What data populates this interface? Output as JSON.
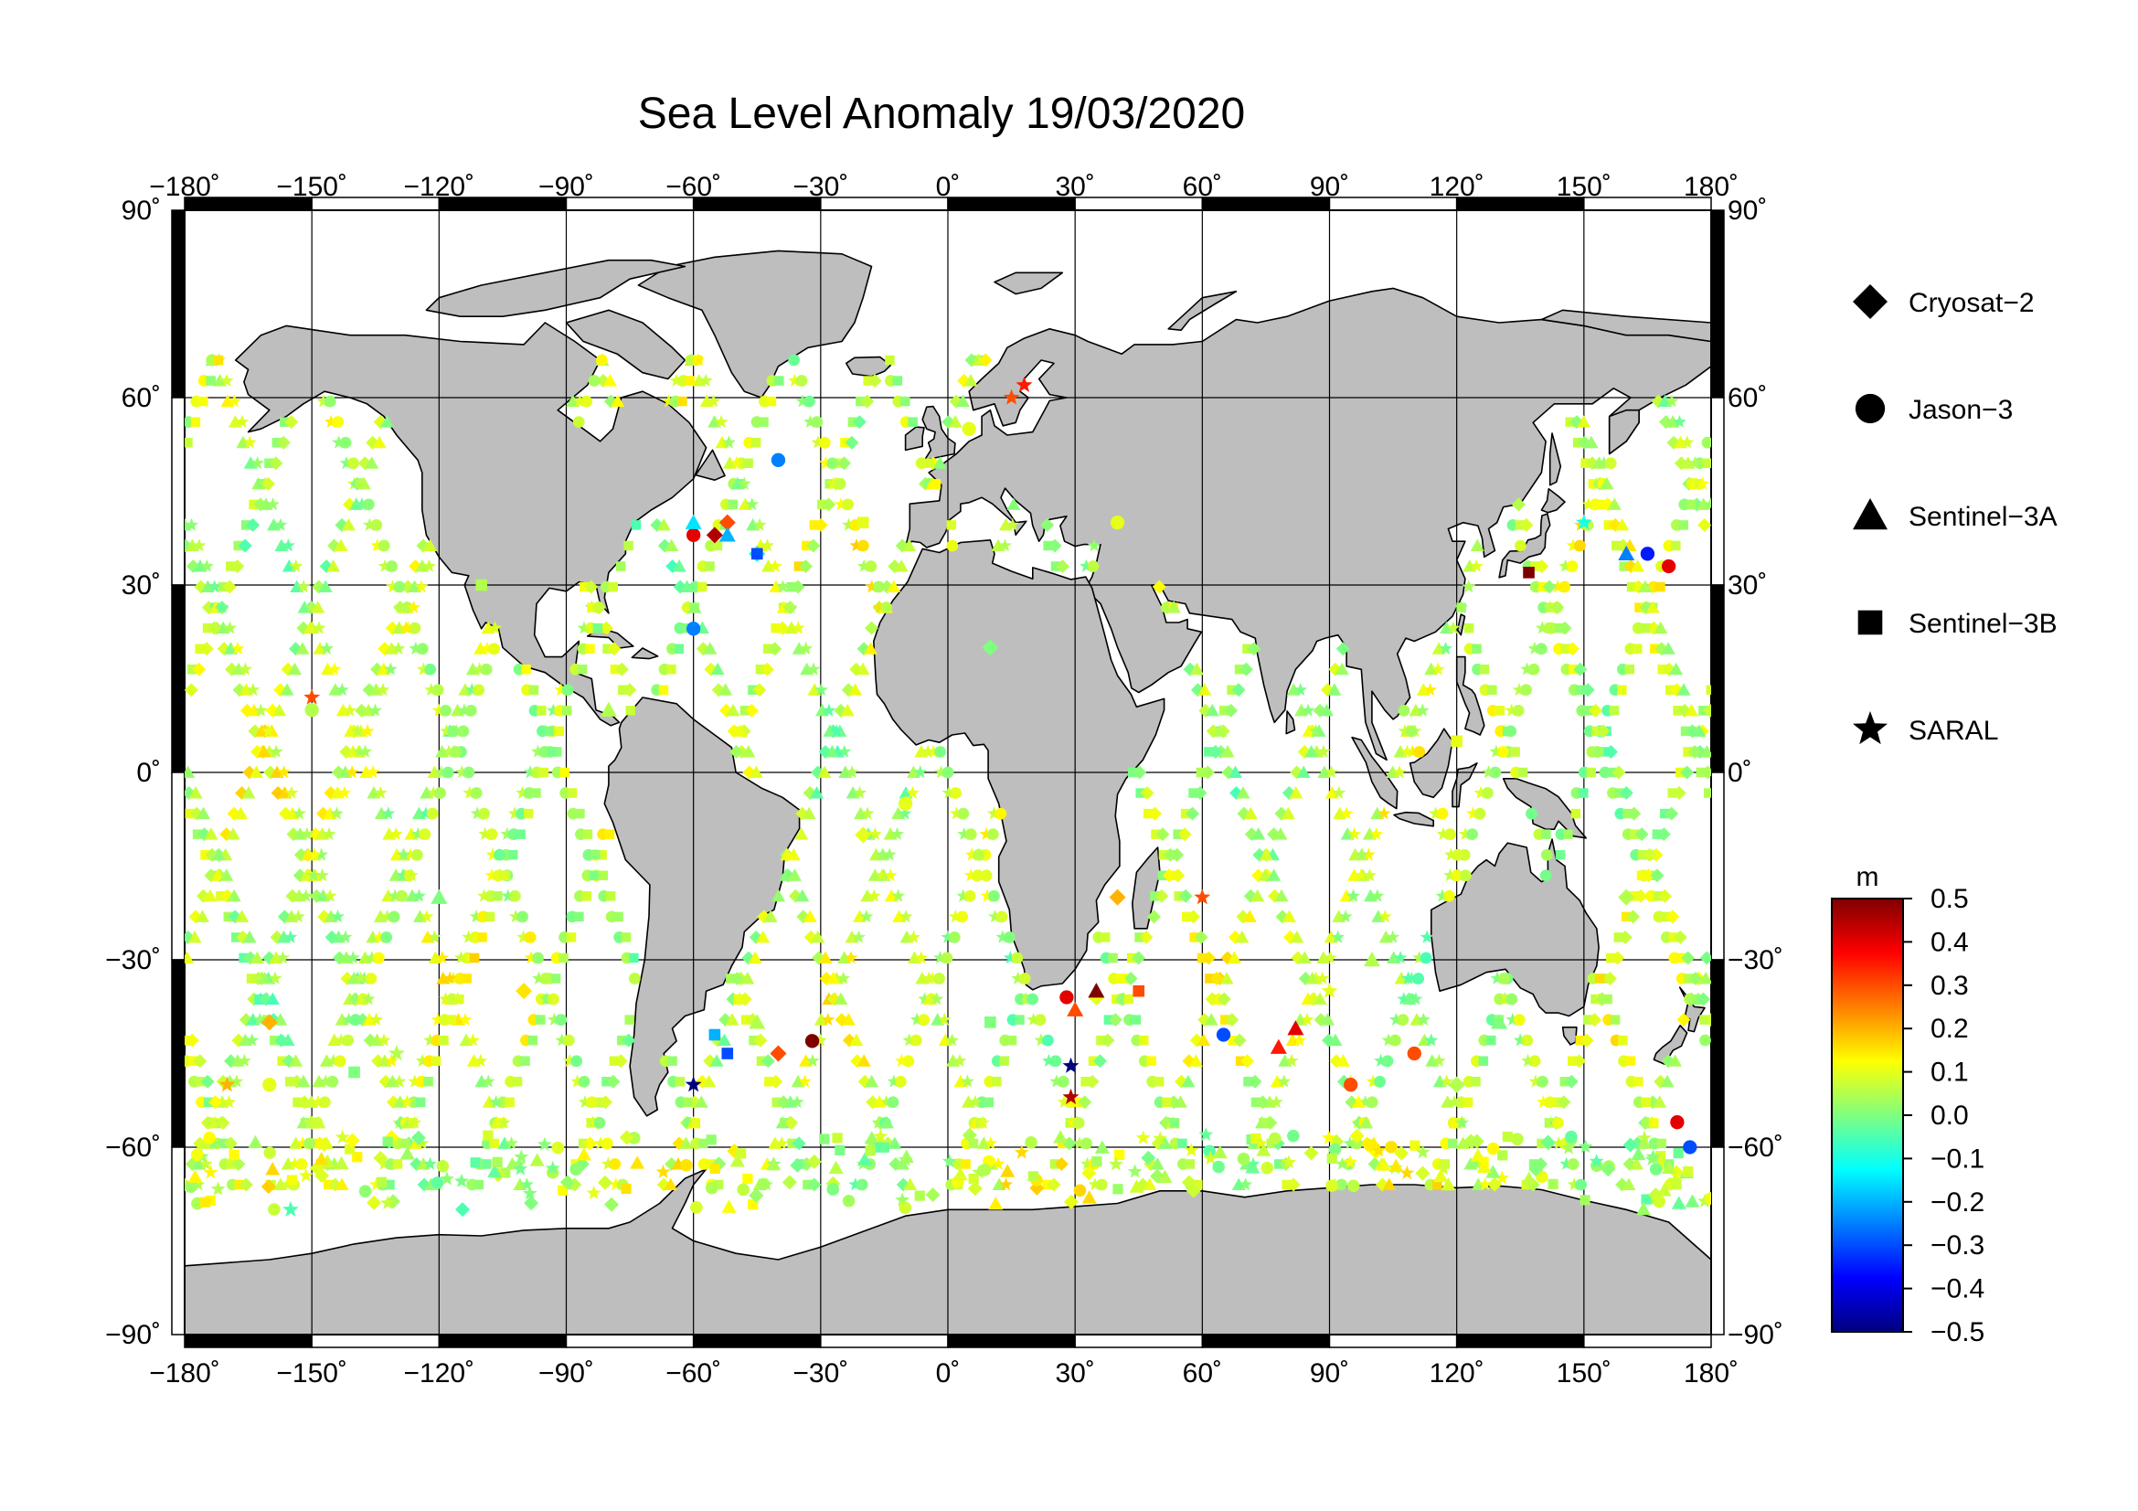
{
  "title": "Sea Level Anomaly 19/03/2020",
  "map": {
    "projection": "equirectangular",
    "lon_range": [
      -180,
      180
    ],
    "lat_range": [
      -90,
      90
    ],
    "grid_lon": [
      -180,
      -150,
      -120,
      -90,
      -60,
      -30,
      0,
      30,
      60,
      90,
      120,
      150,
      180
    ],
    "grid_lat": [
      -90,
      -60,
      -30,
      0,
      30,
      60,
      90
    ],
    "lon_tick_labels": [
      "−180˚",
      "−150˚",
      "−120˚",
      "−90˚",
      "−60˚",
      "−30˚",
      "0˚",
      "30˚",
      "60˚",
      "90˚",
      "120˚",
      "150˚",
      "180˚"
    ],
    "lat_tick_labels_left": [
      "−90˚",
      "−60˚",
      "−30˚",
      "0˚",
      "30˚",
      "60˚",
      "90˚"
    ],
    "lat_tick_labels_right": [
      "−90˚",
      "−60˚",
      "−30˚",
      "0˚",
      "30˚",
      "60˚",
      "90˚"
    ],
    "land_color": "#bebebe",
    "ocean_color": "#ffffff"
  },
  "legend": {
    "items": [
      {
        "label": "Cryosat−2",
        "marker": "diamond"
      },
      {
        "label": "Jason−3",
        "marker": "circle"
      },
      {
        "label": "Sentinel−3A",
        "marker": "triangle"
      },
      {
        "label": "Sentinel−3B",
        "marker": "square"
      },
      {
        "label": "SARAL",
        "marker": "star"
      }
    ]
  },
  "colorbar": {
    "unit": "m",
    "min": -0.5,
    "max": 0.5,
    "tick_labels": [
      "0.5",
      "0.4",
      "0.3",
      "0.2",
      "0.1",
      "0.0",
      "−0.1",
      "−0.2",
      "−0.3",
      "−0.4",
      "−0.5"
    ],
    "colors": [
      "#00007f",
      "#0000ff",
      "#007fff",
      "#00ffff",
      "#7fff7f",
      "#ffff00",
      "#ff7f00",
      "#ff0000",
      "#7f0000"
    ]
  },
  "chart_data": {
    "type": "scatter",
    "title": "Sea Level Anomaly 19/03/2020",
    "xlabel": "",
    "ylabel": "",
    "xlim": [
      -180,
      180
    ],
    "ylim": [
      -90,
      90
    ],
    "value_unit": "m",
    "value_range": [
      -0.5,
      0.5
    ],
    "series": [
      {
        "name": "Cryosat−2",
        "marker": "diamond",
        "points": [
          [
            -55,
            38,
            0.45
          ],
          [
            -52,
            40,
            0.3
          ],
          [
            -45,
            35,
            -0.1
          ],
          [
            35,
            -36,
            0.1
          ],
          [
            40,
            -20,
            0.2
          ],
          [
            -40,
            -45,
            0.3
          ],
          [
            -160,
            -40,
            0.2
          ],
          [
            -100,
            -35,
            0.15
          ],
          [
            10,
            20,
            0.0
          ],
          [
            120,
            -50,
            0.05
          ],
          [
            160,
            -20,
            0.05
          ],
          [
            -20,
            -10,
            0.1
          ]
        ]
      },
      {
        "name": "Jason−3",
        "marker": "circle",
        "points": [
          [
            -60,
            38,
            0.4
          ],
          [
            -60,
            23,
            -0.25
          ],
          [
            -40,
            50,
            -0.25
          ],
          [
            -32,
            -43,
            0.5
          ],
          [
            28,
            -36,
            0.4
          ],
          [
            65,
            -42,
            -0.3
          ],
          [
            165,
            35,
            -0.35
          ],
          [
            170,
            33,
            0.4
          ],
          [
            172,
            -56,
            0.4
          ],
          [
            175,
            -60,
            -0.3
          ],
          [
            110,
            -45,
            0.3
          ],
          [
            95,
            -50,
            0.3
          ],
          [
            40,
            40,
            0.1
          ],
          [
            5,
            55,
            0.1
          ],
          [
            -160,
            -50,
            0.1
          ],
          [
            -150,
            10,
            0.05
          ],
          [
            -10,
            -5,
            0.1
          ]
        ]
      },
      {
        "name": "Sentinel−3A",
        "marker": "triangle",
        "points": [
          [
            35,
            -35,
            0.5
          ],
          [
            82,
            -41,
            0.4
          ],
          [
            78,
            -44,
            0.35
          ],
          [
            -60,
            40,
            -0.15
          ],
          [
            -52,
            38,
            -0.2
          ],
          [
            160,
            35,
            -0.25
          ],
          [
            30,
            -38,
            0.3
          ],
          [
            -45,
            -40,
            0.05
          ],
          [
            100,
            -30,
            0.05
          ],
          [
            -120,
            -20,
            0.0
          ],
          [
            130,
            -40,
            0.0
          ],
          [
            -80,
            10,
            0.05
          ]
        ]
      },
      {
        "name": "Sentinel−3B",
        "marker": "square",
        "points": [
          [
            137,
            32,
            0.5
          ],
          [
            -52,
            -45,
            -0.3
          ],
          [
            -45,
            35,
            -0.3
          ],
          [
            -55,
            -42,
            -0.2
          ],
          [
            45,
            -35,
            0.3
          ],
          [
            -140,
            -48,
            0.0
          ],
          [
            120,
            5,
            0.1
          ],
          [
            -110,
            30,
            0.05
          ],
          [
            10,
            -40,
            0.0
          ],
          [
            -20,
            40,
            0.1
          ]
        ]
      },
      {
        "name": "SARAL",
        "marker": "star",
        "points": [
          [
            29,
            -47,
            -0.5
          ],
          [
            29,
            -52,
            0.45
          ],
          [
            -60,
            -50,
            -0.5
          ],
          [
            18,
            62,
            0.35
          ],
          [
            15,
            60,
            0.3
          ],
          [
            -150,
            12,
            0.3
          ],
          [
            60,
            -20,
            0.3
          ],
          [
            -170,
            -50,
            0.2
          ],
          [
            -130,
            -45,
            0.05
          ],
          [
            150,
            40,
            -0.1
          ],
          [
            -155,
            -70,
            -0.05
          ],
          [
            90,
            -35,
            0.1
          ]
        ]
      }
    ]
  }
}
